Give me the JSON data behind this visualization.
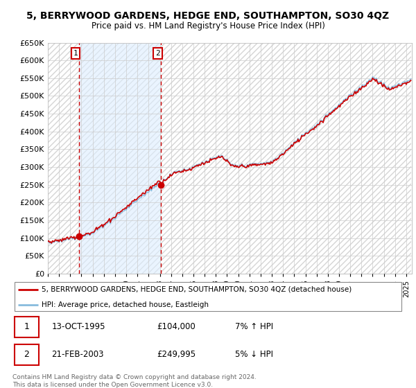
{
  "title": "5, BERRYWOOD GARDENS, HEDGE END, SOUTHAMPTON, SO30 4QZ",
  "subtitle": "Price paid vs. HM Land Registry's House Price Index (HPI)",
  "ylim": [
    0,
    650000
  ],
  "sale1_price": 104000,
  "sale1_year": 1995.79,
  "sale2_price": 249995,
  "sale2_year": 2003.12,
  "legend_line1": "5, BERRYWOOD GARDENS, HEDGE END, SOUTHAMPTON, SO30 4QZ (detached house)",
  "legend_line2": "HPI: Average price, detached house, Eastleigh",
  "row1_num": "1",
  "row1_date": "13-OCT-1995",
  "row1_price": "£104,000",
  "row1_hpi": "7% ↑ HPI",
  "row2_num": "2",
  "row2_date": "21-FEB-2003",
  "row2_price": "£249,995",
  "row2_hpi": "5% ↓ HPI",
  "footer": "Contains HM Land Registry data © Crown copyright and database right 2024.\nThis data is licensed under the Open Government Licence v3.0.",
  "sale_color": "#cc0000",
  "hpi_color": "#88bbdd",
  "shade_color": "#ddeeff",
  "background_color": "#ffffff",
  "grid_color": "#cccccc"
}
